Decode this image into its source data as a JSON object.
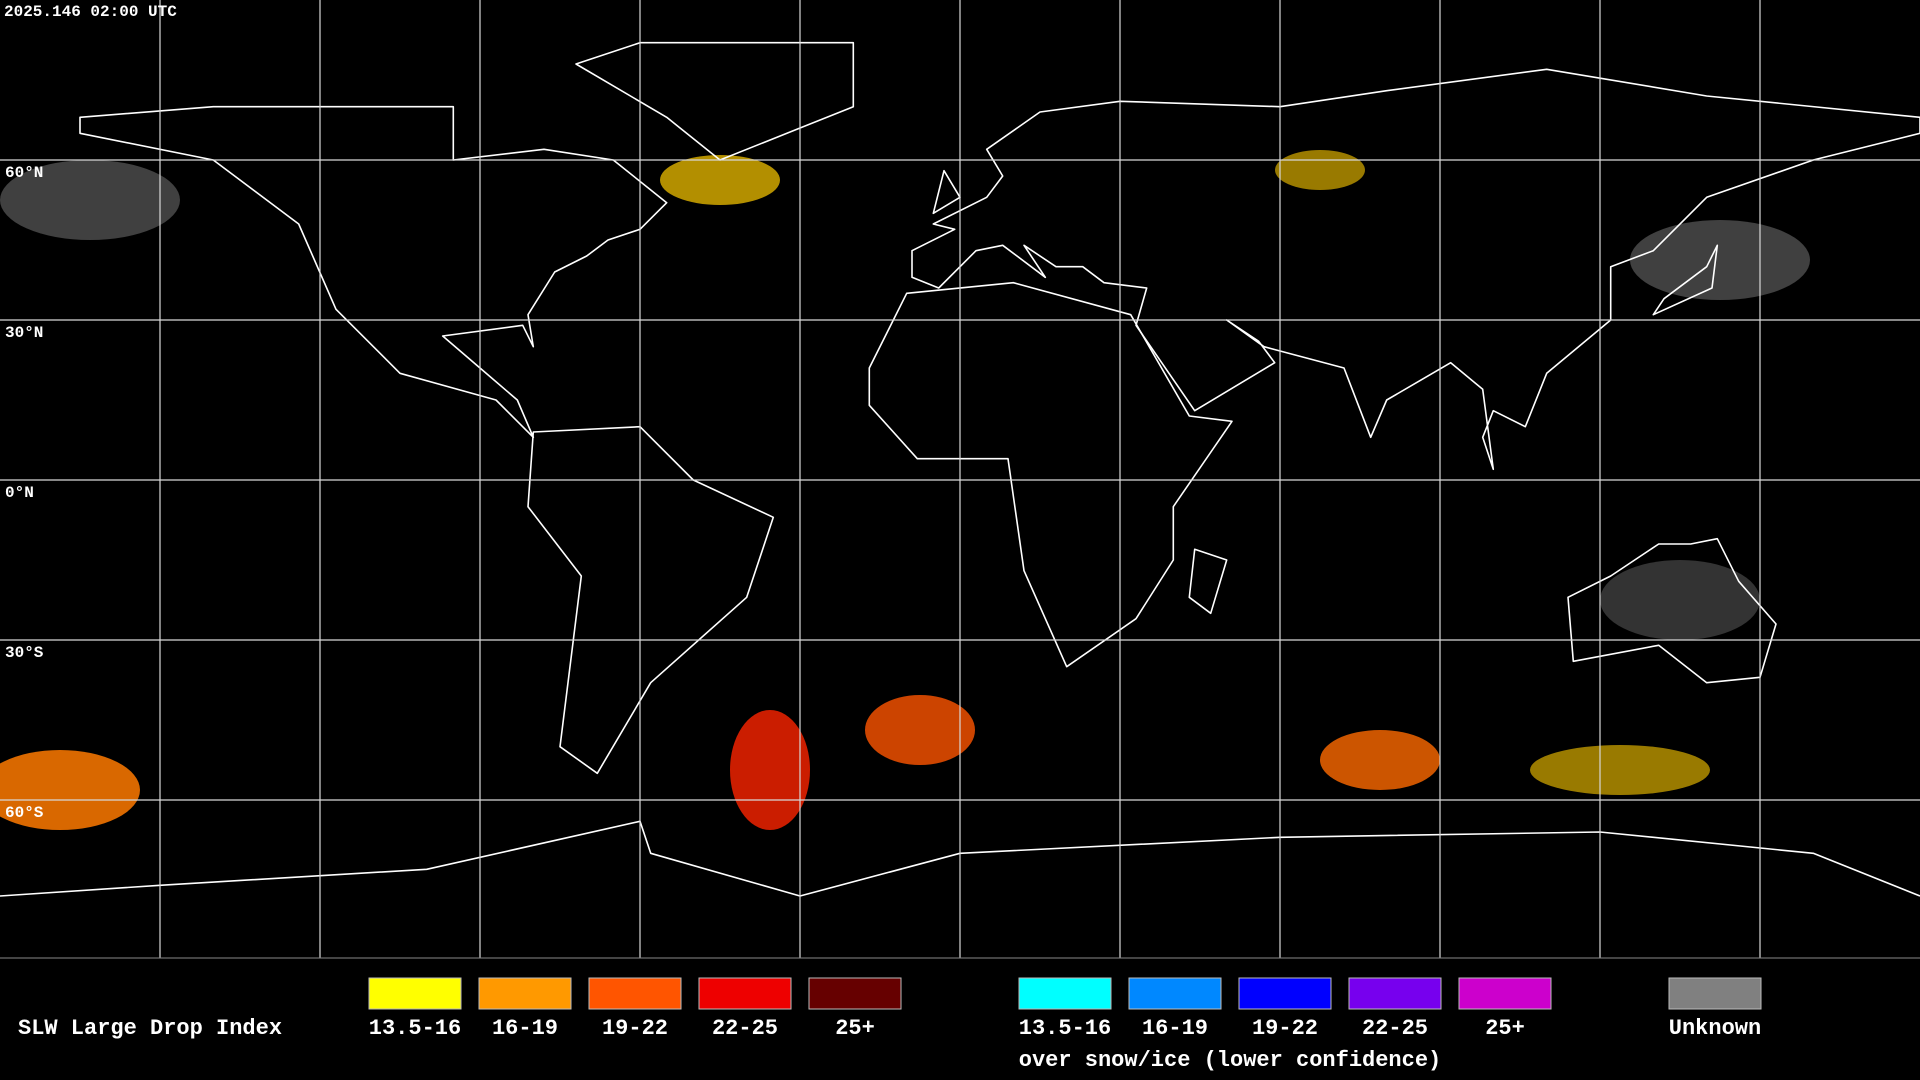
{
  "header": {
    "timestamp": "2025.146 02:00 UTC"
  },
  "map": {
    "lat_labels": [
      "60°N",
      "30°N",
      "0°N",
      "30°S",
      "60°S"
    ]
  },
  "legend": {
    "title": "SLW Large Drop Index",
    "items": [
      {
        "label": "13.5-16",
        "color": "#ffff00"
      },
      {
        "label": "16-19",
        "color": "#ff9900"
      },
      {
        "label": "19-22",
        "color": "#ff5500"
      },
      {
        "label": "22-25",
        "color": "#ee0000"
      },
      {
        "label": "25+",
        "color": "#660000"
      }
    ],
    "snow_items": [
      {
        "label": "13.5-16",
        "color": "#00ffff"
      },
      {
        "label": "16-19",
        "color": "#0088ff"
      },
      {
        "label": "19-22",
        "color": "#0000ff"
      },
      {
        "label": "22-25",
        "color": "#7700ee"
      },
      {
        "label": "25+",
        "color": "#cc00cc"
      }
    ],
    "snow_caption": "over snow/ice (lower confidence)",
    "unknown": {
      "label": "Unknown",
      "color": "#808080"
    }
  }
}
